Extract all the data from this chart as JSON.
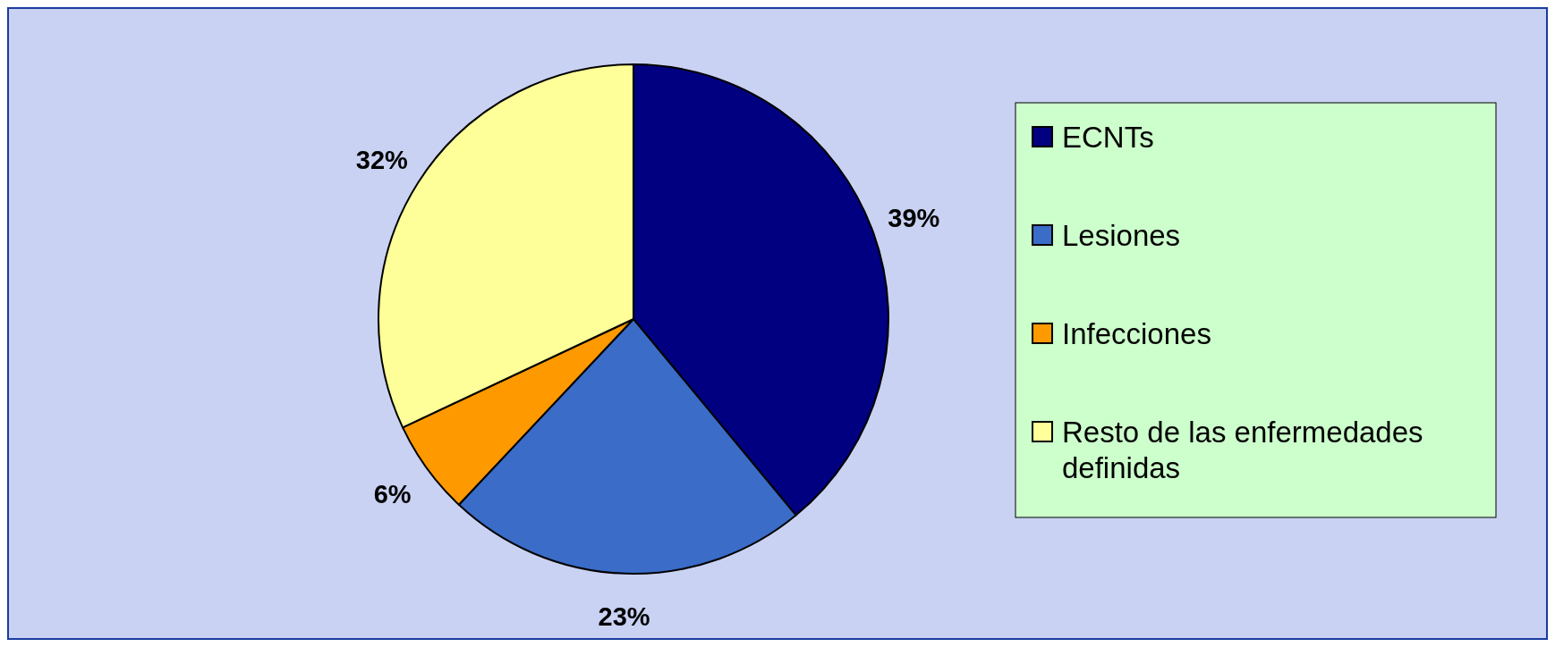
{
  "chart_data": {
    "type": "pie",
    "categories": [
      "ECNTs",
      "Lesiones",
      "Infecciones",
      "Resto de las enfermedades definidas"
    ],
    "values": [
      39,
      23,
      6,
      32
    ],
    "colors": [
      "#000080",
      "#3a6cc8",
      "#ff9900",
      "#ffff99"
    ],
    "value_labels": [
      "39%",
      "23%",
      "6%",
      "32%"
    ],
    "legend": "right"
  }
}
